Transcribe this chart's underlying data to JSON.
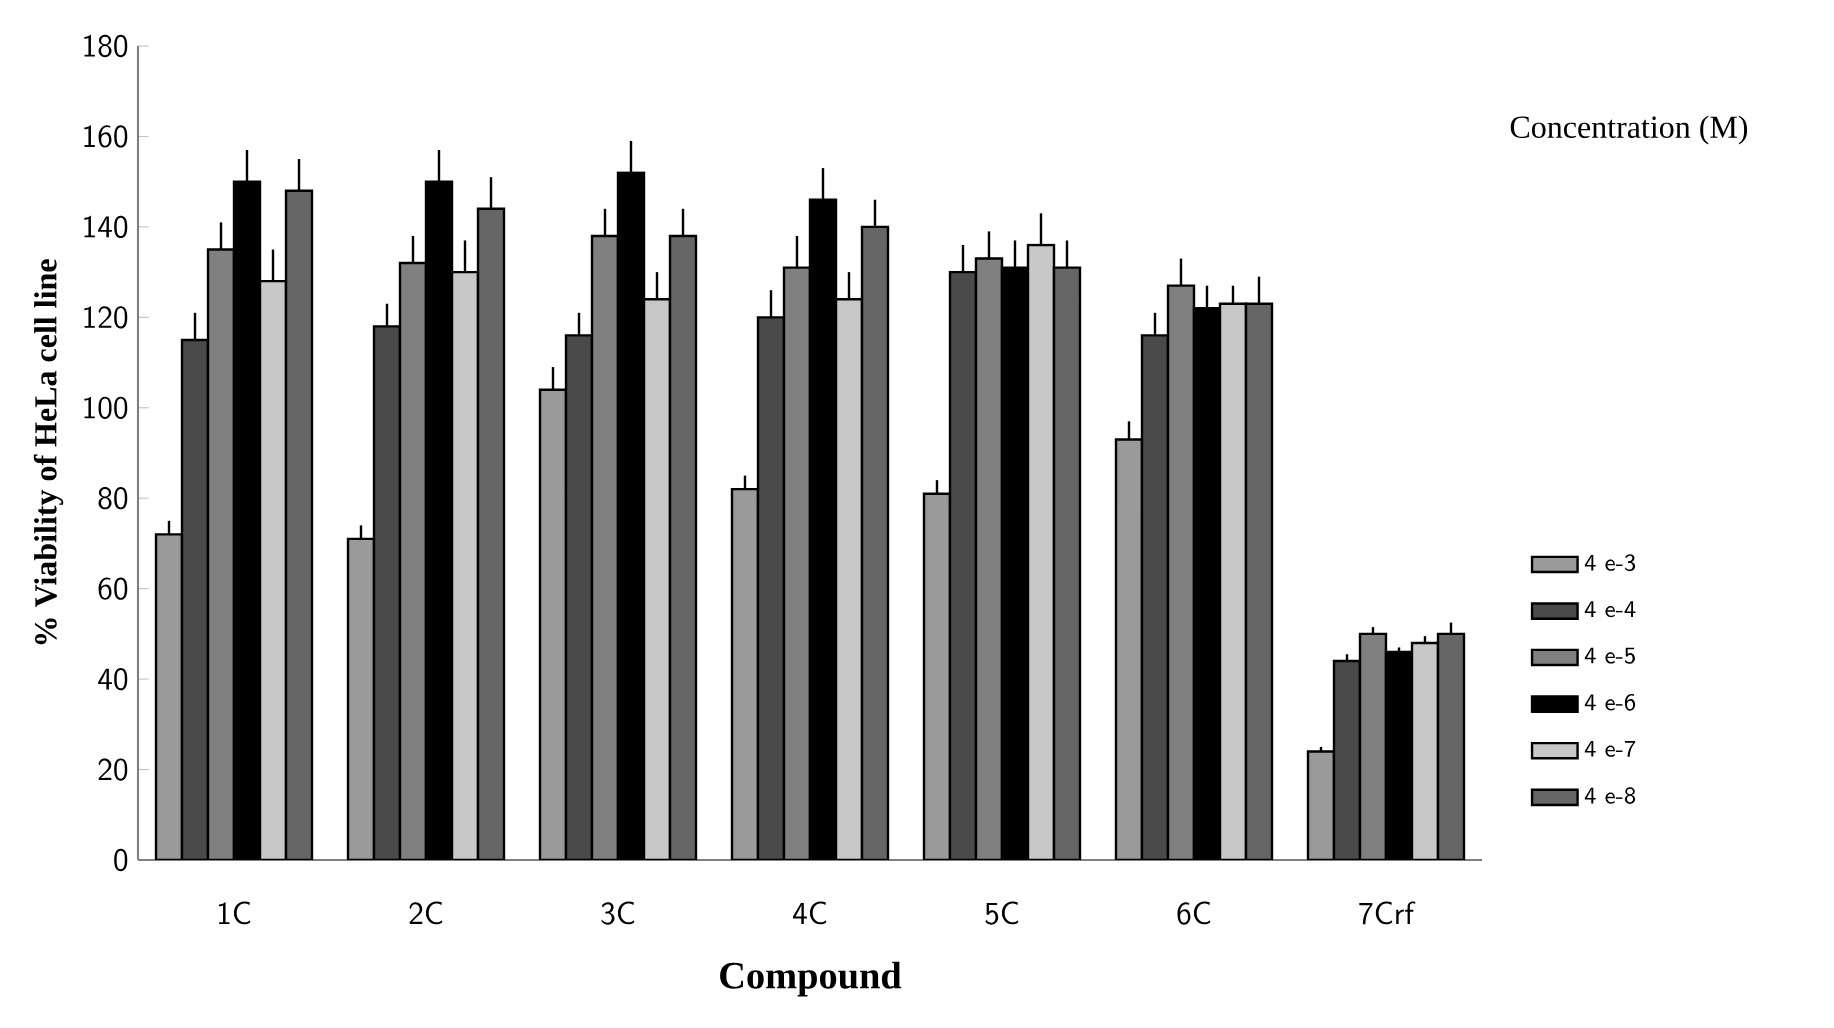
{
  "chart_data": {
    "type": "bar",
    "xlabel": "Compound",
    "ylabel": "% Viability of HeLa cell line",
    "legend_title": "Concentration (M)",
    "categories": [
      "1C",
      "2C",
      "3C",
      "4C",
      "5C",
      "6C",
      "7Crf"
    ],
    "series": [
      {
        "name": "4 e-3",
        "color": "#9a9a9a",
        "values": [
          72,
          71,
          104,
          82,
          81,
          93,
          24
        ],
        "errors": [
          [
            72,
            75
          ],
          [
            71,
            74
          ],
          [
            104,
            109
          ],
          [
            82,
            85
          ],
          [
            81,
            84
          ],
          [
            93,
            97
          ],
          [
            24,
            25
          ]
        ]
      },
      {
        "name": "4 e-4",
        "color": "#4a4a4a",
        "values": [
          115,
          118,
          116,
          120,
          130,
          116,
          44
        ],
        "errors": [
          [
            115,
            121
          ],
          [
            118,
            123
          ],
          [
            116,
            121
          ],
          [
            120,
            126
          ],
          [
            130,
            136
          ],
          [
            116,
            121
          ],
          [
            44,
            45.5
          ]
        ]
      },
      {
        "name": "4 e-5",
        "color": "#808080",
        "values": [
          135,
          132,
          138,
          131,
          133,
          127,
          50
        ],
        "errors": [
          [
            135,
            141
          ],
          [
            132,
            138
          ],
          [
            138,
            144
          ],
          [
            131,
            138
          ],
          [
            133,
            139
          ],
          [
            127,
            133
          ],
          [
            50,
            51.5
          ]
        ]
      },
      {
        "name": "4 e-6",
        "color": "#000000",
        "values": [
          150,
          150,
          152,
          146,
          131,
          122,
          46
        ],
        "errors": [
          [
            150,
            157
          ],
          [
            150,
            157
          ],
          [
            152,
            159
          ],
          [
            146,
            153
          ],
          [
            131,
            137
          ],
          [
            122,
            127
          ],
          [
            46,
            47
          ]
        ]
      },
      {
        "name": "4 e-7",
        "color": "#c8c8c8",
        "values": [
          128,
          130,
          124,
          124,
          136,
          123,
          48
        ],
        "errors": [
          [
            128,
            135
          ],
          [
            130,
            137
          ],
          [
            124,
            130
          ],
          [
            124,
            130
          ],
          [
            136,
            143
          ],
          [
            123,
            127
          ],
          [
            48,
            49.5
          ]
        ]
      },
      {
        "name": "4 e-8",
        "color": "#666666",
        "values": [
          148,
          144,
          138,
          140,
          131,
          123,
          50
        ],
        "errors": [
          [
            148,
            155
          ],
          [
            144,
            151
          ],
          [
            138,
            144
          ],
          [
            140,
            146
          ],
          [
            131,
            137
          ],
          [
            123,
            129
          ],
          [
            50,
            52.5
          ]
        ]
      }
    ],
    "ylim": [
      0,
      180
    ],
    "yticks": [
      0,
      20,
      40,
      60,
      80,
      100,
      120,
      140,
      160,
      180
    ],
    "legend": "right"
  }
}
